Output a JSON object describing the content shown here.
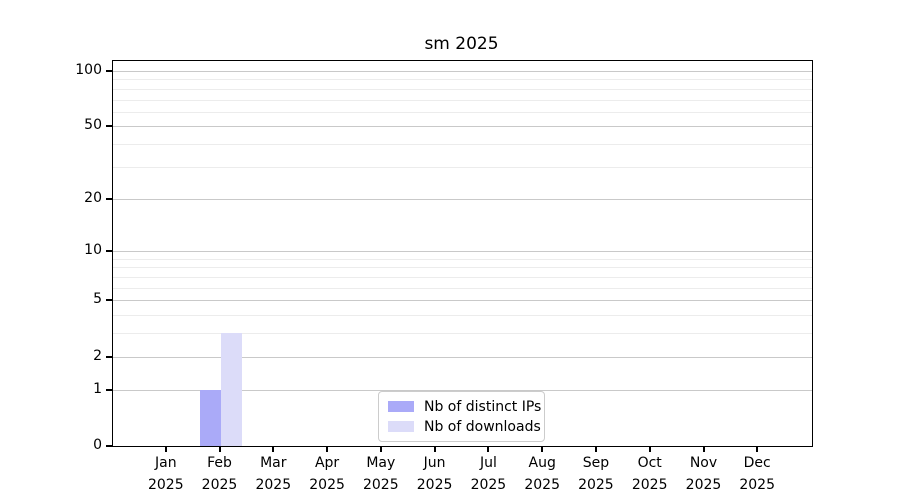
{
  "chart_data": {
    "type": "bar",
    "title": "sm 2025",
    "year": "2025",
    "categories": [
      "Jan",
      "Feb",
      "Mar",
      "Apr",
      "May",
      "Jun",
      "Jul",
      "Aug",
      "Sep",
      "Oct",
      "Nov",
      "Dec"
    ],
    "series": [
      {
        "name": "Nb of distinct IPs",
        "color": "#aaaaf8",
        "values": [
          0,
          1,
          0,
          0,
          0,
          0,
          0,
          0,
          0,
          0,
          0,
          0
        ]
      },
      {
        "name": "Nb of downloads",
        "color": "#dcdcf9",
        "values": [
          0,
          3,
          0,
          0,
          0,
          0,
          0,
          0,
          0,
          0,
          0,
          0
        ]
      }
    ],
    "xlabel": "",
    "ylabel": "",
    "yscale": "log10(1+x)",
    "ylim": [
      0,
      113
    ],
    "y_major_ticks": [
      0,
      1,
      2,
      5,
      10,
      20,
      50,
      100
    ],
    "y_minor_ticks": [
      3,
      4,
      6,
      7,
      8,
      9,
      30,
      40,
      60,
      70,
      80,
      90
    ],
    "grid": "horizontal",
    "legend_position": "lower center"
  },
  "colors": {
    "axis": "#000000",
    "grid_major": "#c9c9c9",
    "grid_minor": "#ececec",
    "legend_border": "#cccccc",
    "background": "#ffffff"
  }
}
